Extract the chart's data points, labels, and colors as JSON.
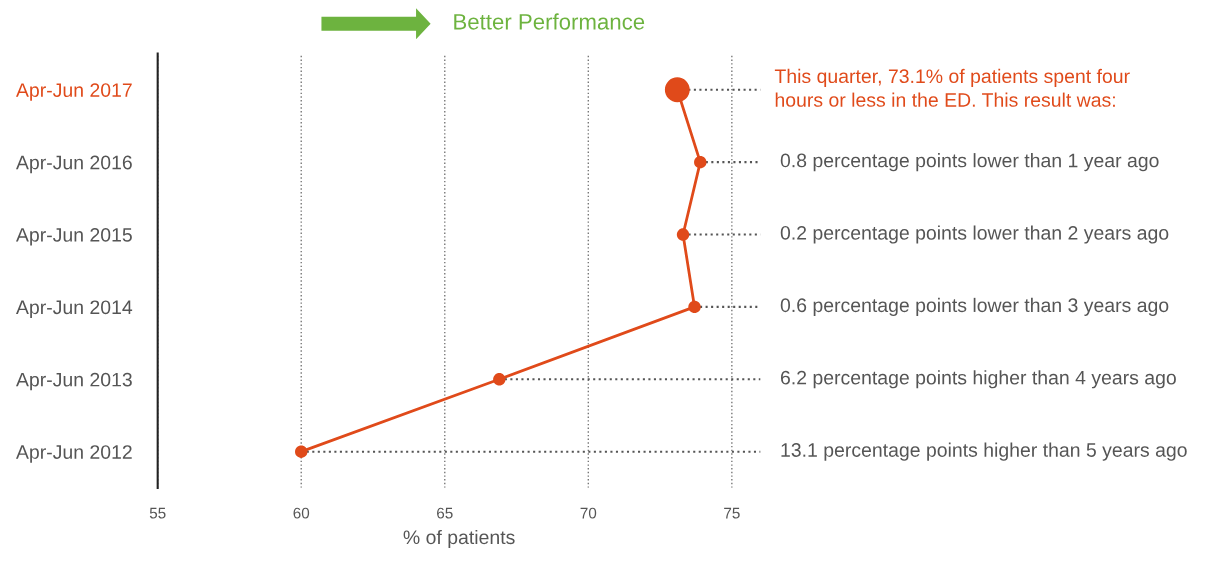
{
  "chart_data": {
    "type": "line",
    "orientation": "horizontal",
    "categories": [
      "Apr-Jun 2017",
      "Apr-Jun 2016",
      "Apr-Jun 2015",
      "Apr-Jun 2014",
      "Apr-Jun 2013",
      "Apr-Jun 2012"
    ],
    "series": [
      {
        "color": "#e04a1a",
        "values": [
          73.1,
          73.9,
          73.3,
          73.7,
          66.9,
          60.0
        ]
      }
    ],
    "xlim": [
      55,
      76
    ],
    "xticks": [
      55,
      60,
      65,
      70,
      75
    ],
    "xlabel": "% of patients",
    "grid": "x",
    "marker": "circle",
    "line_style": "solid",
    "legend": false,
    "annotations": [
      "Better Performance",
      {
        "text": "This quarter, 73.1% of patients spent four\nhours or less in the ED. This result was:",
        "x": 73.1,
        "y": "Apr-Jun 2017"
      },
      {
        "text": "0.8 percentage points lower than 1 year ago",
        "x": 73.9,
        "y": "Apr-Jun 2016"
      },
      {
        "text": "0.2 percentage points lower than 2 years ago",
        "x": 73.3,
        "y": "Apr-Jun 2015"
      },
      {
        "text": "0.6 percentage points lower than 3 years ago",
        "x": 73.7,
        "y": "Apr-Jun 2014"
      },
      {
        "text": "6.2 percentage points higher than 4 years ago",
        "x": 66.9,
        "y": "Apr-Jun 2013"
      },
      {
        "text": "13.1 percentage points higher than 5 years ago",
        "x": 60.0,
        "y": "Apr-Jun 2012"
      }
    ]
  }
}
